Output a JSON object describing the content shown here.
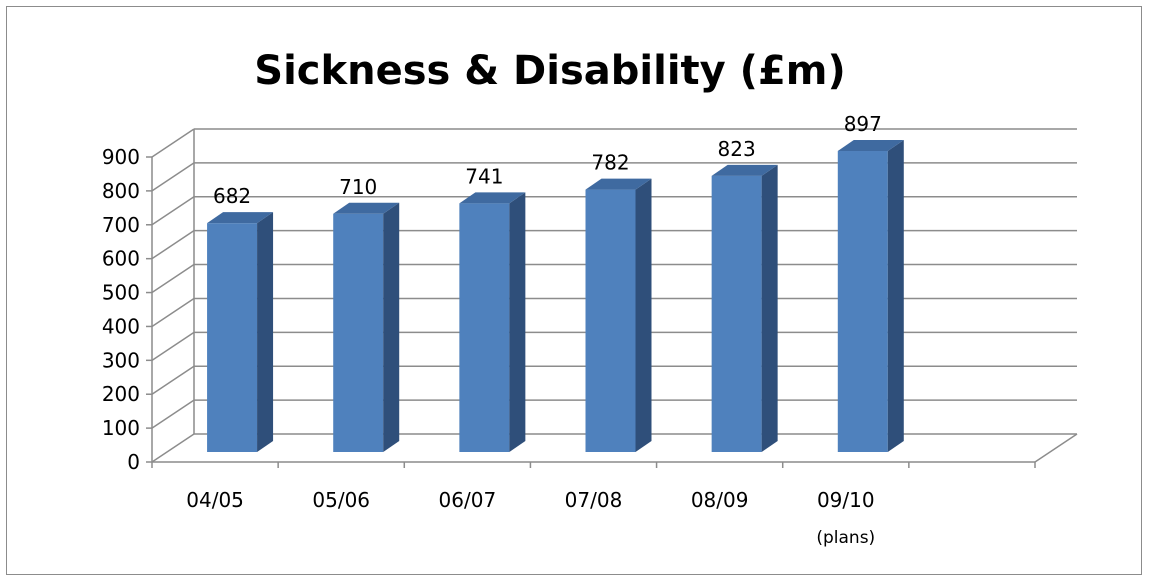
{
  "chart_data": {
    "type": "bar",
    "title": "Sickness & Disability (£m)",
    "categories": [
      "04/05",
      "05/06",
      "06/07",
      "07/08",
      "08/09",
      "09/10"
    ],
    "category_notes": [
      "",
      "",
      "",
      "",
      "",
      "(plans)"
    ],
    "values": [
      682,
      710,
      741,
      782,
      823,
      897
    ],
    "data_labels": [
      "682",
      "710",
      "741",
      "782",
      "823",
      "897"
    ],
    "ylim": [
      0,
      900
    ],
    "yticks": [
      "0",
      "100",
      "200",
      "300",
      "400",
      "500",
      "600",
      "700",
      "800",
      "900"
    ],
    "xlabel": "",
    "ylabel": "",
    "grid": true,
    "legend": "none",
    "bar_color": "#4f81bd",
    "bar_side_color": "#2f4f7a",
    "bar_top_color": "#3f6aa0"
  }
}
